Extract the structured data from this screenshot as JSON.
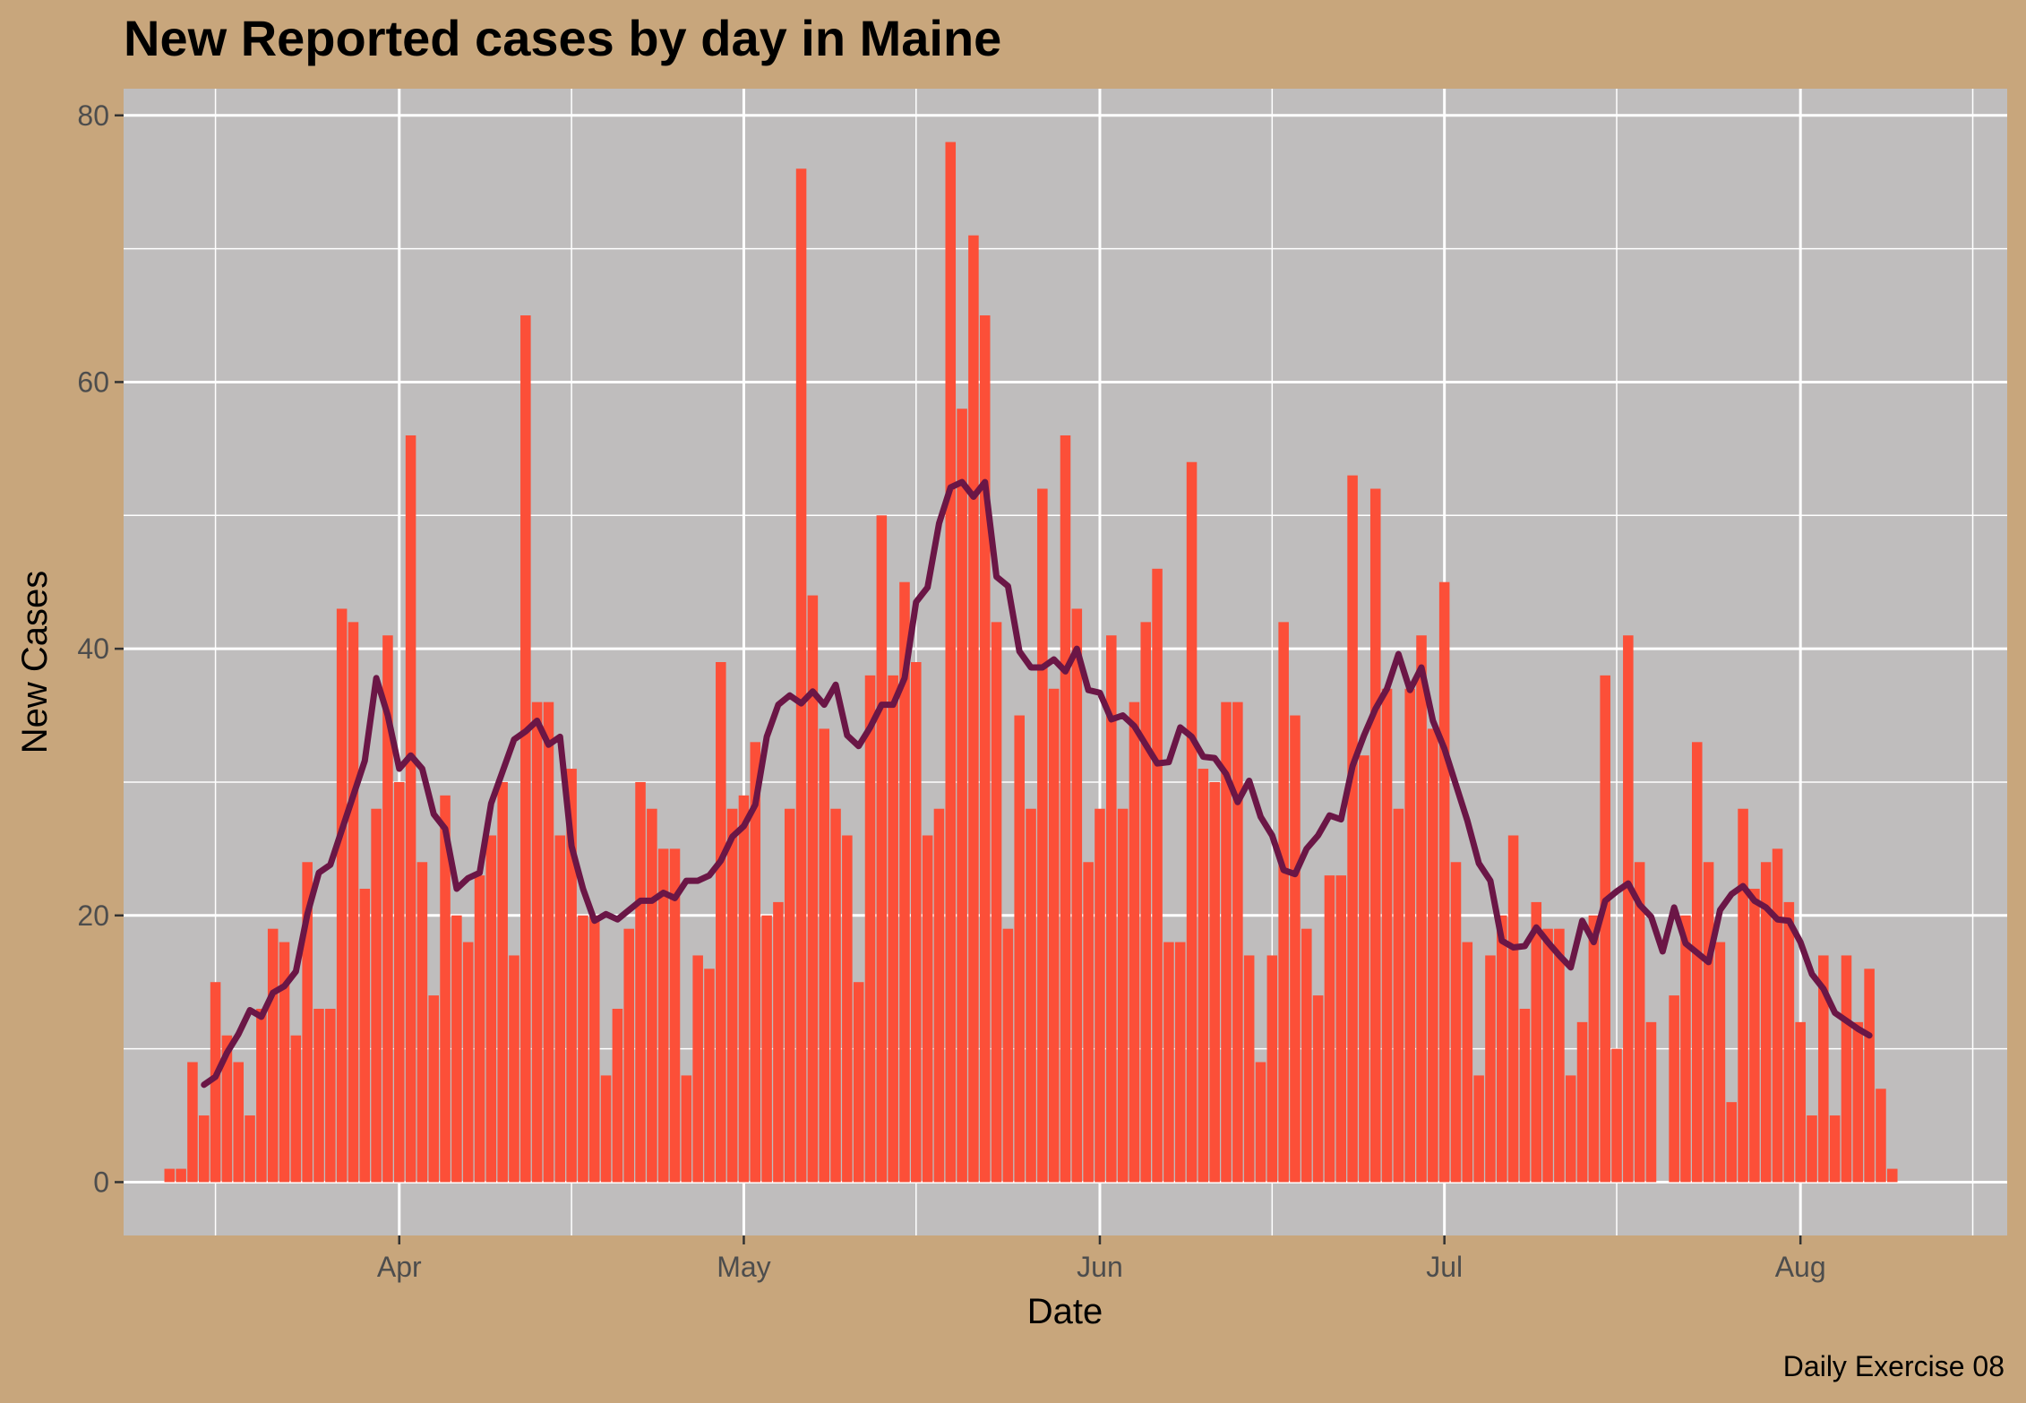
{
  "chart_data": {
    "type": "bar",
    "title": "New Reported cases by day in Maine",
    "xlabel": "Date",
    "ylabel": "New Cases",
    "caption": "Daily Exercise 08",
    "x_start_date": "2020-03-12",
    "x_tick_labels": [
      {
        "date": "2020-04-01",
        "label": "Apr"
      },
      {
        "date": "2020-05-01",
        "label": "May"
      },
      {
        "date": "2020-06-01",
        "label": "Jun"
      },
      {
        "date": "2020-07-01",
        "label": "Jul"
      },
      {
        "date": "2020-08-01",
        "label": "Aug"
      }
    ],
    "x_minor_grid_dates": [
      "2020-03-16",
      "2020-04-16",
      "2020-05-16",
      "2020-06-16",
      "2020-07-16",
      "2020-08-16"
    ],
    "y_ticks": [
      0,
      20,
      40,
      60,
      80
    ],
    "y_minor_ticks": [
      10,
      30,
      50,
      70
    ],
    "ylim": [
      -4,
      82
    ],
    "xlim_dates": [
      "2020-03-08",
      "2020-08-19"
    ],
    "grid": true,
    "colors": {
      "background": "#c8a67c",
      "panel": "#bfbdbd",
      "bars": "#fc4f38",
      "line": "#6b1646",
      "grid": "#ffffff"
    },
    "series": [
      {
        "type": "bar",
        "values": [
          1,
          1,
          9,
          5,
          15,
          11,
          9,
          5,
          13,
          19,
          18,
          11,
          24,
          13,
          13,
          43,
          42,
          22,
          28,
          41,
          30,
          56,
          24,
          14,
          29,
          20,
          18,
          23,
          26,
          30,
          17,
          65,
          36,
          36,
          26,
          31,
          20,
          20,
          8,
          13,
          19,
          30,
          28,
          25,
          25,
          8,
          17,
          16,
          39,
          28,
          29,
          33,
          20,
          21,
          28,
          76,
          44,
          34,
          28,
          26,
          15,
          38,
          50,
          38,
          45,
          39,
          26,
          28,
          78,
          58,
          71,
          65,
          42,
          19,
          35,
          28,
          52,
          37,
          56,
          43,
          24,
          28,
          41,
          28,
          36,
          42,
          46,
          18,
          18,
          54,
          31,
          30,
          36,
          36,
          17,
          9,
          17,
          42,
          35,
          19,
          14,
          23,
          23,
          53,
          32,
          52,
          37,
          28,
          37,
          41,
          34,
          45,
          24,
          18,
          8,
          17,
          20,
          26,
          13,
          21,
          19,
          19,
          8,
          12,
          20,
          38,
          10,
          41,
          24,
          12,
          0,
          14,
          20,
          33,
          24,
          18,
          6,
          28,
          22,
          24,
          25,
          21,
          12,
          5,
          17,
          5,
          17,
          12,
          16,
          7,
          1
        ]
      },
      {
        "type": "line",
        "start_offset": 3,
        "values": [
          7.3,
          7.9,
          9.7,
          11.1,
          12.9,
          12.4,
          14.2,
          14.7,
          15.8,
          20.1,
          23.2,
          23.8,
          26.4,
          29,
          31.6,
          37.8,
          35,
          31,
          32,
          31,
          27.6,
          26.5,
          22,
          22.8,
          23.2,
          28.4,
          30.8,
          33.2,
          33.8,
          34.6,
          32.8,
          33.4,
          25.2,
          22,
          19.6,
          20.1,
          19.7,
          20.4,
          21.1,
          21.1,
          21.7,
          21.3,
          22.6,
          22.6,
          23,
          24.1,
          25.9,
          26.7,
          28.3,
          33.4,
          35.8,
          36.5,
          35.9,
          36.8,
          35.8,
          37.3,
          33.5,
          32.7,
          34.1,
          35.8,
          35.8,
          37.8,
          43.5,
          44.6,
          49.4,
          52.1,
          52.5,
          51.4,
          52.5,
          45.4,
          44.7,
          39.8,
          38.6,
          38.6,
          39.2,
          38.3,
          40,
          36.9,
          36.7,
          34.7,
          35,
          34.2,
          32.8,
          31.4,
          31.5,
          34.1,
          33.4,
          31.9,
          31.8,
          30.6,
          28.5,
          30.1,
          27.4,
          26,
          23.4,
          23.1,
          25,
          26,
          27.5,
          27.2,
          31.2,
          33.5,
          35.5,
          37,
          39.6,
          36.9,
          38.6,
          34.6,
          32.5,
          29.8,
          27.1,
          23.9,
          22.6,
          18.1,
          17.6,
          17.7,
          19.1,
          18,
          17,
          16.1,
          19.6,
          18,
          21.1,
          21.8,
          22.4,
          20.8,
          19.9,
          17.3,
          20.6,
          17.9,
          17.2,
          16.5,
          20.4,
          21.6,
          22.2,
          21.1,
          20.6,
          19.7,
          19.6,
          18,
          15.6,
          14.5,
          12.7,
          12.1,
          11.5,
          11
        ]
      }
    ]
  }
}
